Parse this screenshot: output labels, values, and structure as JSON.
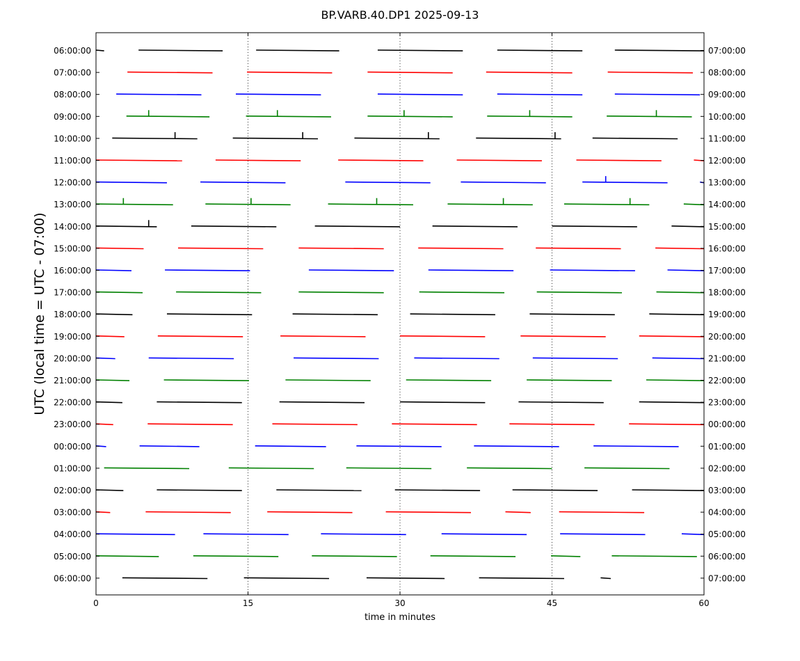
{
  "chart_data": {
    "type": "line",
    "title": "BP.VARB.40.DP1 2025-09-13",
    "xlabel": "time in minutes",
    "ylabel": "UTC (local time = UTC - 07:00)",
    "xlim": [
      0,
      60
    ],
    "x_ticks": [
      0,
      15,
      30,
      45,
      60
    ],
    "grid": "vertical dotted lines at 15, 30, 45",
    "legend": "none",
    "colors": [
      "#000000",
      "#ff0000",
      "#0000ff",
      "#008000"
    ],
    "rows": [
      {
        "left": "06:00:00",
        "right": "07:00:00",
        "color": "#000000",
        "segments": [
          [
            0,
            0.8
          ],
          [
            4.2,
            12.5
          ],
          [
            15.8,
            24.0
          ],
          [
            27.8,
            36.2
          ],
          [
            39.6,
            48.0
          ],
          [
            51.2,
            60.0
          ]
        ],
        "spikes": []
      },
      {
        "left": "07:00:00",
        "right": "08:00:00",
        "color": "#ff0000",
        "segments": [
          [
            3.1,
            11.5
          ],
          [
            14.9,
            23.3
          ],
          [
            26.8,
            35.2
          ],
          [
            38.5,
            47.0
          ],
          [
            50.5,
            58.9
          ]
        ],
        "spikes": []
      },
      {
        "left": "08:00:00",
        "right": "09:00:00",
        "color": "#0000ff",
        "segments": [
          [
            2.0,
            10.4
          ],
          [
            13.8,
            22.2
          ],
          [
            27.8,
            36.2
          ],
          [
            39.6,
            48.0
          ],
          [
            51.2,
            59.6
          ]
        ],
        "spikes": []
      },
      {
        "left": "09:00:00",
        "right": "10:00:00",
        "color": "#008000",
        "segments": [
          [
            3.0,
            11.2
          ],
          [
            14.8,
            23.2
          ],
          [
            26.8,
            35.2
          ],
          [
            38.6,
            47.0
          ],
          [
            50.4,
            58.8
          ]
        ],
        "spikes": [
          5.2,
          17.9,
          30.4,
          42.8,
          55.3
        ]
      },
      {
        "left": "10:00:00",
        "right": "11:00:00",
        "color": "#000000",
        "segments": [
          [
            1.6,
            10.0
          ],
          [
            13.5,
            21.9
          ],
          [
            25.5,
            33.9
          ],
          [
            37.5,
            45.9
          ],
          [
            49.0,
            57.4
          ]
        ],
        "spikes": [
          7.8,
          20.4,
          32.8,
          45.3
        ]
      },
      {
        "left": "11:00:00",
        "right": "12:00:00",
        "color": "#ff0000",
        "segments": [
          [
            0.0,
            8.5
          ],
          [
            11.8,
            20.2
          ],
          [
            23.9,
            32.3
          ],
          [
            35.6,
            44.0
          ],
          [
            47.4,
            55.8
          ],
          [
            59.0,
            60.0
          ]
        ],
        "spikes": []
      },
      {
        "left": "12:00:00",
        "right": "13:00:00",
        "color": "#0000ff",
        "segments": [
          [
            0.0,
            7.0
          ],
          [
            10.3,
            18.7
          ],
          [
            24.6,
            33.0
          ],
          [
            36.0,
            44.4
          ],
          [
            48.0,
            56.4
          ],
          [
            59.6,
            60.0
          ]
        ],
        "spikes": [
          50.3
        ]
      },
      {
        "left": "13:00:00",
        "right": "14:00:00",
        "color": "#008000",
        "segments": [
          [
            0.0,
            7.6
          ],
          [
            10.8,
            19.2
          ],
          [
            22.9,
            31.3
          ],
          [
            34.7,
            43.1
          ],
          [
            46.2,
            54.6
          ],
          [
            58.0,
            60.0
          ]
        ],
        "spikes": [
          2.7,
          15.3,
          27.7,
          40.2,
          52.7
        ]
      },
      {
        "left": "14:00:00",
        "right": "15:00:00",
        "color": "#000000",
        "segments": [
          [
            0.0,
            6.0
          ],
          [
            9.4,
            17.8
          ],
          [
            21.6,
            30.0
          ],
          [
            33.2,
            41.6
          ],
          [
            45.0,
            53.4
          ],
          [
            56.8,
            60.0
          ]
        ],
        "spikes": [
          5.2
        ]
      },
      {
        "left": "15:00:00",
        "right": "16:00:00",
        "color": "#ff0000",
        "segments": [
          [
            0.0,
            4.7
          ],
          [
            8.1,
            16.5
          ],
          [
            20.0,
            28.4
          ],
          [
            31.8,
            40.2
          ],
          [
            43.4,
            51.8
          ],
          [
            55.2,
            60.0
          ]
        ],
        "spikes": []
      },
      {
        "left": "16:00:00",
        "right": "17:00:00",
        "color": "#0000ff",
        "segments": [
          [
            0.0,
            3.5
          ],
          [
            6.8,
            15.2
          ],
          [
            21.0,
            29.4
          ],
          [
            32.8,
            41.2
          ],
          [
            44.8,
            53.2
          ],
          [
            56.4,
            60.0
          ]
        ],
        "spikes": []
      },
      {
        "left": "17:00:00",
        "right": "18:00:00",
        "color": "#008000",
        "segments": [
          [
            0.0,
            4.6
          ],
          [
            7.9,
            16.3
          ],
          [
            20.0,
            28.4
          ],
          [
            31.9,
            40.3
          ],
          [
            43.5,
            51.9
          ],
          [
            55.3,
            60.0
          ]
        ],
        "spikes": []
      },
      {
        "left": "18:00:00",
        "right": "19:00:00",
        "color": "#000000",
        "segments": [
          [
            0.0,
            3.6
          ],
          [
            7.0,
            15.4
          ],
          [
            19.4,
            27.8
          ],
          [
            31.0,
            39.4
          ],
          [
            42.8,
            51.2
          ],
          [
            54.6,
            60.0
          ]
        ],
        "spikes": []
      },
      {
        "left": "19:00:00",
        "right": "20:00:00",
        "color": "#ff0000",
        "segments": [
          [
            0.0,
            2.8
          ],
          [
            6.1,
            14.5
          ],
          [
            18.2,
            26.6
          ],
          [
            30.0,
            38.4
          ],
          [
            41.9,
            50.3
          ],
          [
            53.6,
            60.0
          ]
        ],
        "spikes": []
      },
      {
        "left": "20:00:00",
        "right": "21:00:00",
        "color": "#0000ff",
        "segments": [
          [
            0.0,
            1.9
          ],
          [
            5.2,
            13.6
          ],
          [
            19.5,
            27.9
          ],
          [
            31.4,
            39.8
          ],
          [
            43.1,
            51.5
          ],
          [
            54.9,
            60.0
          ]
        ],
        "spikes": []
      },
      {
        "left": "21:00:00",
        "right": "22:00:00",
        "color": "#008000",
        "segments": [
          [
            0.0,
            3.3
          ],
          [
            6.7,
            15.1
          ],
          [
            18.7,
            27.1
          ],
          [
            30.6,
            39.0
          ],
          [
            42.5,
            50.9
          ],
          [
            54.3,
            60.0
          ]
        ],
        "spikes": []
      },
      {
        "left": "22:00:00",
        "right": "23:00:00",
        "color": "#000000",
        "segments": [
          [
            0.0,
            2.6
          ],
          [
            6.0,
            14.4
          ],
          [
            18.1,
            26.5
          ],
          [
            30.0,
            38.4
          ],
          [
            41.7,
            50.1
          ],
          [
            53.6,
            60.0
          ]
        ],
        "spikes": []
      },
      {
        "left": "23:00:00",
        "right": "00:00:00",
        "color": "#ff0000",
        "segments": [
          [
            0.0,
            1.7
          ],
          [
            5.1,
            13.5
          ],
          [
            17.4,
            25.8
          ],
          [
            29.2,
            37.6
          ],
          [
            40.8,
            49.2
          ],
          [
            52.6,
            60.0
          ]
        ],
        "spikes": []
      },
      {
        "left": "00:00:00",
        "right": "01:00:00",
        "color": "#0000ff",
        "segments": [
          [
            0.0,
            1.0
          ],
          [
            4.3,
            10.2
          ],
          [
            15.7,
            22.7
          ],
          [
            25.7,
            34.1
          ],
          [
            37.3,
            45.7
          ],
          [
            49.1,
            57.5
          ]
        ],
        "spikes": []
      },
      {
        "left": "01:00:00",
        "right": "02:00:00",
        "color": "#008000",
        "segments": [
          [
            0.8,
            9.2
          ],
          [
            13.1,
            21.5
          ],
          [
            24.7,
            33.1
          ],
          [
            36.6,
            45.0
          ],
          [
            48.2,
            56.6
          ]
        ],
        "spikes": []
      },
      {
        "left": "02:00:00",
        "right": "03:00:00",
        "color": "#000000",
        "segments": [
          [
            0.0,
            2.7
          ],
          [
            6.0,
            14.4
          ],
          [
            17.8,
            26.2
          ],
          [
            29.5,
            37.9
          ],
          [
            41.1,
            49.5
          ],
          [
            52.9,
            60.0
          ]
        ],
        "spikes": []
      },
      {
        "left": "03:00:00",
        "right": "04:00:00",
        "color": "#ff0000",
        "segments": [
          [
            0.0,
            1.4
          ],
          [
            4.9,
            13.3
          ],
          [
            16.9,
            25.3
          ],
          [
            28.6,
            37.0
          ],
          [
            40.4,
            42.9
          ],
          [
            45.7,
            54.1
          ]
        ],
        "spikes": []
      },
      {
        "left": "04:00:00",
        "right": "05:00:00",
        "color": "#0000ff",
        "segments": [
          [
            0.0,
            7.8
          ],
          [
            10.6,
            19.0
          ],
          [
            22.2,
            30.6
          ],
          [
            34.1,
            42.5
          ],
          [
            45.8,
            54.2
          ],
          [
            57.8,
            60.0
          ]
        ],
        "spikes": []
      },
      {
        "left": "05:00:00",
        "right": "06:00:00",
        "color": "#008000",
        "segments": [
          [
            0.0,
            6.2
          ],
          [
            9.6,
            18.0
          ],
          [
            21.3,
            29.7
          ],
          [
            33.0,
            41.4
          ],
          [
            44.9,
            47.8
          ],
          [
            50.9,
            59.3
          ]
        ],
        "spikes": []
      },
      {
        "left": "06:00:00",
        "right": "07:00:00",
        "color": "#000000",
        "segments": [
          [
            2.6,
            11.0
          ],
          [
            14.6,
            23.0
          ],
          [
            26.7,
            34.4
          ],
          [
            37.8,
            46.2
          ],
          [
            49.8,
            50.8
          ]
        ],
        "spikes": []
      }
    ]
  }
}
